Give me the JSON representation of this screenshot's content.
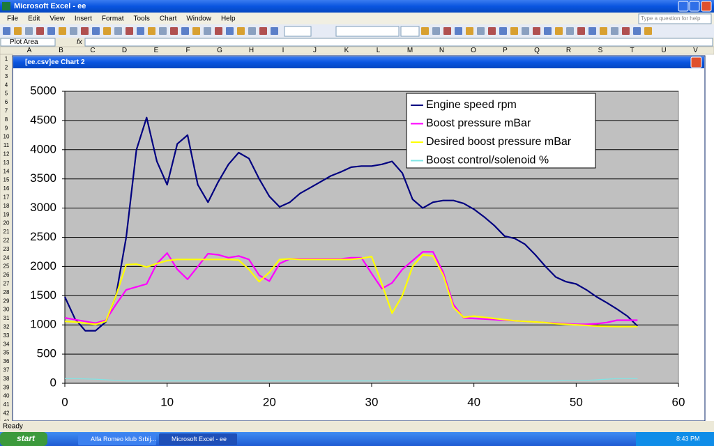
{
  "window": {
    "title": "Microsoft Excel - ee"
  },
  "menu": [
    "File",
    "Edit",
    "View",
    "Insert",
    "Format",
    "Tools",
    "Chart",
    "Window",
    "Help"
  ],
  "help_box": "Type a question for help",
  "name_box": "Plot Area",
  "formula_label": "fx",
  "columns": [
    "A",
    "B",
    "C",
    "D",
    "E",
    "F",
    "G",
    "H",
    "I",
    "J",
    "K",
    "L",
    "M",
    "N",
    "O",
    "P",
    "Q",
    "R",
    "S",
    "T",
    "U",
    "V"
  ],
  "rows": [
    1,
    2,
    3,
    4,
    5,
    6,
    7,
    8,
    9,
    10,
    11,
    12,
    13,
    14,
    15,
    16,
    17,
    18,
    19,
    20,
    21,
    22,
    23,
    24,
    25,
    26,
    27,
    28,
    29,
    30,
    31,
    32,
    33,
    34,
    35,
    36,
    37,
    38,
    39,
    40,
    41,
    42,
    43
  ],
  "chart_window": {
    "title": "[ee.csv]ee Chart 2"
  },
  "status": "Ready",
  "taskbar": {
    "start": "start",
    "tasks": [
      "Alfa Romeo klub Srbij...",
      "Microsoft Excel - ee"
    ],
    "clock": "8:43 PM"
  },
  "chart_data": {
    "type": "line",
    "x": [
      0,
      1,
      2,
      3,
      4,
      5,
      6,
      7,
      8,
      9,
      10,
      11,
      12,
      13,
      14,
      15,
      16,
      17,
      18,
      19,
      20,
      21,
      22,
      23,
      24,
      25,
      26,
      27,
      28,
      29,
      30,
      31,
      32,
      33,
      34,
      35,
      36,
      37,
      38,
      39,
      40,
      41,
      42,
      43,
      44,
      45,
      46,
      47,
      48,
      49,
      50,
      51,
      52,
      53,
      54,
      55,
      56
    ],
    "xlim": [
      0,
      60
    ],
    "xticks": [
      0,
      10,
      20,
      30,
      40,
      50,
      60
    ],
    "ylim": [
      0,
      5000
    ],
    "yticks": [
      0,
      500,
      1000,
      1500,
      2000,
      2500,
      3000,
      3500,
      4000,
      4500,
      5000
    ],
    "grid": true,
    "legend": "upper right",
    "plot_color": "#c0c0c0",
    "series": [
      {
        "name": "Engine speed rpm",
        "color": "#000080",
        "values": [
          1480,
          1100,
          900,
          900,
          1050,
          1500,
          2500,
          4000,
          4550,
          3800,
          3400,
          4100,
          4250,
          3400,
          3100,
          3450,
          3750,
          3950,
          3850,
          3500,
          3200,
          3020,
          3100,
          3250,
          3350,
          3450,
          3550,
          3620,
          3700,
          3720,
          3720,
          3750,
          3800,
          3600,
          3150,
          3000,
          3100,
          3130,
          3130,
          3080,
          2980,
          2850,
          2700,
          2520,
          2480,
          2380,
          2200,
          2000,
          1820,
          1740,
          1700,
          1600,
          1480,
          1380,
          1270,
          1150,
          980
        ]
      },
      {
        "name": "Boost pressure mBar",
        "color": "#ff00ff",
        "values": [
          1120,
          1090,
          1060,
          1030,
          1080,
          1350,
          1600,
          1650,
          1700,
          2050,
          2230,
          1950,
          1780,
          2000,
          2220,
          2200,
          2150,
          2180,
          2120,
          1850,
          1750,
          2050,
          2130,
          2130,
          2130,
          2130,
          2130,
          2130,
          2150,
          2150,
          1880,
          1620,
          1720,
          1950,
          2100,
          2250,
          2250,
          1900,
          1350,
          1120,
          1110,
          1100,
          1090,
          1080,
          1070,
          1060,
          1050,
          1040,
          1030,
          1020,
          1010,
          1010,
          1020,
          1040,
          1080,
          1080,
          1080
        ]
      },
      {
        "name": "Desired boost pressure mBar",
        "color": "#ffff00",
        "values": [
          1060,
          1050,
          1030,
          1010,
          1060,
          1500,
          2030,
          2040,
          1990,
          2050,
          2100,
          2120,
          2120,
          2120,
          2120,
          2120,
          2120,
          2110,
          1950,
          1740,
          1900,
          2120,
          2130,
          2120,
          2120,
          2120,
          2120,
          2120,
          2120,
          2140,
          2170,
          1700,
          1200,
          1500,
          2000,
          2200,
          2180,
          1850,
          1300,
          1130,
          1150,
          1130,
          1110,
          1090,
          1070,
          1060,
          1050,
          1040,
          1020,
          1010,
          1000,
          990,
          980,
          975,
          970,
          970,
          970
        ]
      },
      {
        "name": "Boost control/solenoid %",
        "color": "#7fe5e5",
        "values": [
          80,
          80,
          75,
          70,
          60,
          50,
          40,
          40,
          40,
          40,
          40,
          40,
          40,
          40,
          40,
          40,
          40,
          40,
          40,
          40,
          40,
          40,
          40,
          40,
          40,
          40,
          40,
          40,
          40,
          40,
          40,
          40,
          50,
          50,
          40,
          40,
          40,
          40,
          40,
          40,
          40,
          40,
          40,
          40,
          40,
          40,
          40,
          40,
          40,
          50,
          50,
          50,
          60,
          70,
          80,
          80,
          80
        ]
      }
    ]
  }
}
